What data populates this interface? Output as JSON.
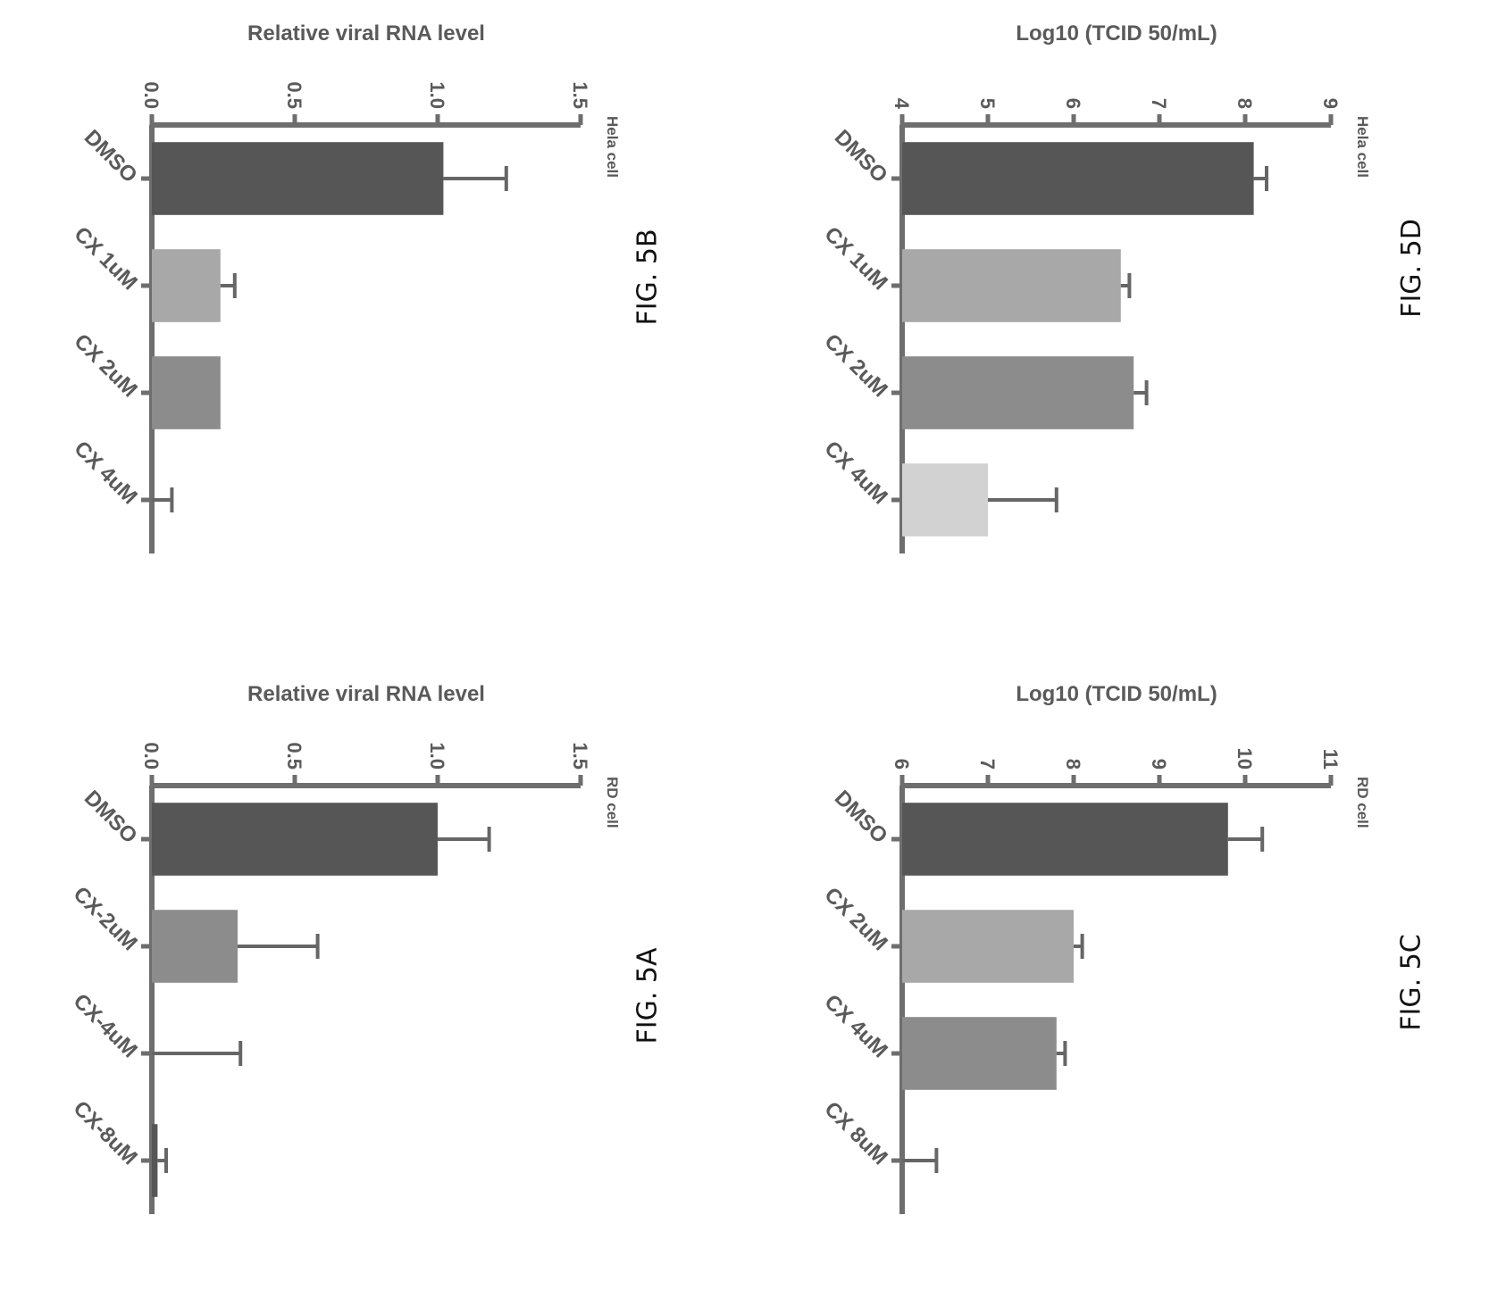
{
  "colors": {
    "axis": "#6e6e6e",
    "text": "#5a5a5a",
    "error_bar": "#666666",
    "bar_dark": "#565656",
    "bar_mid": "#8c8c8c",
    "bar_light": "#a8a8a8",
    "bar_faint": "#d2d2d2"
  },
  "chart_data": [
    {
      "id": "5A",
      "type": "bar",
      "caption": "FIG. 5A",
      "subtitle": "RD cell",
      "ylabel": "Relative viral RNA level",
      "categories": [
        "DMSO",
        "CX-2uM",
        "CX-4uM",
        "CX-8uM"
      ],
      "values": [
        1.0,
        0.3,
        0.0,
        0.02
      ],
      "errors": [
        0.18,
        0.28,
        0.31,
        0.03
      ],
      "bar_colors": [
        "bar_dark",
        "bar_mid",
        "bar_faint",
        "bar_dark"
      ],
      "ylim": [
        0,
        1.5
      ],
      "yticks": [
        "0.0",
        "0.5",
        "1.0",
        "1.5"
      ],
      "ytick_values": [
        0,
        0.5,
        1.0,
        1.5
      ]
    },
    {
      "id": "5B",
      "type": "bar",
      "caption": "FIG. 5B",
      "subtitle": "Hela cell",
      "ylabel": "Relative viral RNA level",
      "categories": [
        "DMSO",
        "CX 1uM",
        "CX 2uM",
        "CX 4uM"
      ],
      "values": [
        1.02,
        0.24,
        0.24,
        0.0
      ],
      "errors": [
        0.22,
        0.05,
        0.0,
        0.07
      ],
      "bar_colors": [
        "bar_dark",
        "bar_light",
        "bar_mid",
        "bar_faint"
      ],
      "ylim": [
        0,
        1.5
      ],
      "yticks": [
        "0.0",
        "0.5",
        "1.0",
        "1.5"
      ],
      "ytick_values": [
        0,
        0.5,
        1.0,
        1.5
      ]
    },
    {
      "id": "5C",
      "type": "bar",
      "caption": "FIG. 5C",
      "subtitle": "RD cell",
      "ylabel": "Log10 (TCID 50/mL)",
      "categories": [
        "DMSO",
        "CX 2uM",
        "CX 4uM",
        "CX 8uM"
      ],
      "values": [
        9.8,
        8.0,
        7.8,
        6.0
      ],
      "errors": [
        0.4,
        0.1,
        0.1,
        0.4
      ],
      "bar_colors": [
        "bar_dark",
        "bar_light",
        "bar_mid",
        "bar_faint"
      ],
      "ylim": [
        6,
        11
      ],
      "yticks": [
        "6",
        "7",
        "8",
        "9",
        "10",
        "11"
      ],
      "ytick_values": [
        6,
        7,
        8,
        9,
        10,
        11
      ]
    },
    {
      "id": "5D",
      "type": "bar",
      "caption": "FIG. 5D",
      "subtitle": "Hela cell",
      "ylabel": "Log10 (TCID 50/mL)",
      "categories": [
        "DMSO",
        "CX 1uM",
        "CX 2uM",
        "CX 4uM"
      ],
      "values": [
        8.1,
        6.55,
        6.7,
        5.0
      ],
      "errors": [
        0.15,
        0.1,
        0.15,
        0.8
      ],
      "bar_colors": [
        "bar_dark",
        "bar_light",
        "bar_mid",
        "bar_faint"
      ],
      "ylim": [
        4,
        9
      ],
      "yticks": [
        "4",
        "5",
        "6",
        "7",
        "8",
        "9"
      ],
      "ytick_values": [
        4,
        5,
        6,
        7,
        8,
        9
      ]
    }
  ]
}
